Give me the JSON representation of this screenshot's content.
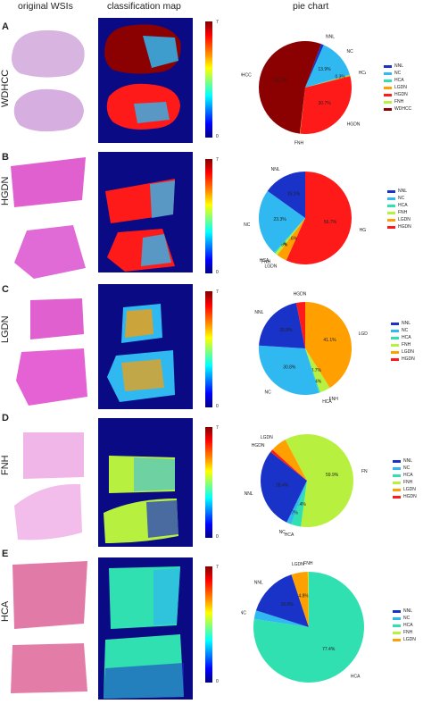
{
  "headers": {
    "col1": "original WSIs",
    "col2": "classification map",
    "col3": "pie chart"
  },
  "colorbar": {
    "ticks": [
      "7",
      "6",
      "5",
      "4",
      "3",
      "2",
      "1",
      "0"
    ],
    "stops": [
      "#7f0000",
      "#ff0000",
      "#ff8c00",
      "#ffff00",
      "#7fff7f",
      "#00ffff",
      "#0080ff",
      "#0000ff",
      "#00007f"
    ]
  },
  "colors": {
    "NNL": "#1932c8",
    "NC": "#30b8f0",
    "HCA": "#30e0b0",
    "LGDN": "#ff9f00",
    "FNH": "#b8f040",
    "HGDN": "#ff1a1a",
    "WDHCC": "#8b0000"
  },
  "panels": [
    {
      "letter": "A",
      "label": "WDHCC",
      "legend": [
        "NNL",
        "NC",
        "HCA",
        "LGDN",
        "HGDN",
        "FNH",
        "WDHCC"
      ],
      "slices": [
        {
          "name": "NNL",
          "value": 1.0,
          "label": "NNL"
        },
        {
          "name": "NC",
          "value": 13.9,
          "label": "NC",
          "pct": "13.9%"
        },
        {
          "name": "HCA",
          "value": 0.3,
          "label": "HCA"
        },
        {
          "name": "LGDN",
          "value": 0.3,
          "label": "",
          "pct": "0.3%"
        },
        {
          "name": "HGDN",
          "value": 30.7,
          "label": "HGDN",
          "pct": "30.7%"
        },
        {
          "name": "FNH",
          "value": 0.1,
          "label": "FNH"
        },
        {
          "name": "WDHCC",
          "value": 53.7,
          "label": "WDHCC",
          "pct": "53.7%"
        }
      ]
    },
    {
      "letter": "B",
      "label": "HGDN",
      "legend": [
        "NNL",
        "NC",
        "HCA",
        "FNH",
        "LGDN",
        "HGDN"
      ],
      "slices": [
        {
          "name": "HGDN",
          "value": 56.7,
          "label": "HGDN",
          "pct": "56.7%"
        },
        {
          "name": "LGDN",
          "value": 3.6,
          "label": "LGDN",
          "pct": "3.6%"
        },
        {
          "name": "FNH",
          "value": 0.9,
          "label": "FNH",
          "pct": "0.9%"
        },
        {
          "name": "HCA",
          "value": 0.4,
          "label": "HCA",
          "pct": "0.4%"
        },
        {
          "name": "NC",
          "value": 23.3,
          "label": "NC",
          "pct": "23.3%"
        },
        {
          "name": "NNL",
          "value": 15.1,
          "label": "NNL",
          "pct": "15.1%"
        }
      ]
    },
    {
      "letter": "C",
      "label": "LGDN",
      "legend": [
        "NNL",
        "NC",
        "HCA",
        "FNH",
        "LGDN",
        "HGDN"
      ],
      "slices": [
        {
          "name": "LGDN",
          "value": 41.1,
          "label": "LGDN",
          "pct": "41.1%"
        },
        {
          "name": "FNH",
          "value": 3.7,
          "label": "FNH",
          "pct": "3.7%"
        },
        {
          "name": "HCA",
          "value": 0.4,
          "label": "HCA",
          "pct": "0.4%"
        },
        {
          "name": "NC",
          "value": 30.8,
          "label": "NC",
          "pct": "30.8%"
        },
        {
          "name": "NNL",
          "value": 20.9,
          "label": "NNL",
          "pct": "20.9%"
        },
        {
          "name": "HGDN",
          "value": 3.1,
          "label": "HGDN"
        }
      ]
    },
    {
      "letter": "D",
      "label": "FNH",
      "legend": [
        "NNL",
        "NC",
        "HCA",
        "FNH",
        "LGDN",
        "HGDN"
      ],
      "slices": [
        {
          "name": "FNH",
          "value": 59.9,
          "label": "FNH",
          "pct": "59.9%"
        },
        {
          "name": "HCA",
          "value": 3.4,
          "label": "HCA",
          "pct": "3.4%"
        },
        {
          "name": "NC",
          "value": 1.7,
          "label": "NC",
          "pct": "1.7%"
        },
        {
          "name": "NNL",
          "value": 28.4,
          "label": "NNL",
          "pct": "28.4%"
        },
        {
          "name": "HGDN",
          "value": 1.0,
          "label": "HGDN"
        },
        {
          "name": "LGDN",
          "value": 5.6,
          "label": "LGDN"
        }
      ]
    },
    {
      "letter": "E",
      "label": "HCA",
      "legend": [
        "NNL",
        "NC",
        "HCA",
        "FNH",
        "LGDN"
      ],
      "slices": [
        {
          "name": "HCA",
          "value": 77.4,
          "label": "HCA",
          "pct": "77.4%"
        },
        {
          "name": "NC",
          "value": 2.5,
          "label": "NC"
        },
        {
          "name": "NNL",
          "value": 15.0,
          "label": "NNL",
          "pct": "15.0%"
        },
        {
          "name": "LGDN",
          "value": 4.8,
          "label": "LGDN",
          "pct": "4.8%"
        },
        {
          "name": "FNH",
          "value": 0.3,
          "label": "FNH"
        }
      ]
    }
  ]
}
